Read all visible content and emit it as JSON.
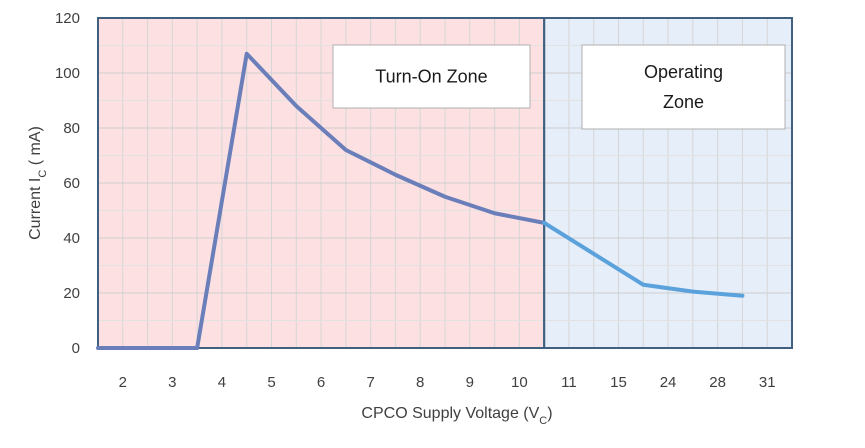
{
  "chart_data": {
    "type": "line",
    "title": "",
    "xlabel": "CPCO Supply Voltage (V",
    "xlabel_sub": "C",
    "xlabel_end": ")",
    "ylabel": "Current I",
    "ylabel_sub": "C",
    "ylabel_end": " ( mA)",
    "ylim": [
      0,
      120
    ],
    "yticks": [
      0,
      20,
      40,
      60,
      80,
      100,
      120
    ],
    "categories": [
      "2",
      "3",
      "4",
      "5",
      "6",
      "7",
      "8",
      "9",
      "10",
      "11",
      "15",
      "24",
      "28",
      "31"
    ],
    "grid": true,
    "zones": [
      {
        "name": "Turn-On Zone",
        "lines": [
          "Turn-On Zone"
        ],
        "from_index": 0,
        "to_index": 9,
        "fill": "#fde0e2",
        "border": "#41607f"
      },
      {
        "name": "Operating Zone",
        "lines": [
          "Operating",
          "Zone"
        ],
        "from_index": 9,
        "to_index": 14,
        "fill": "#e6eef9",
        "border": "#41607f"
      }
    ],
    "series": [
      {
        "name": "Current",
        "segments": [
          {
            "color": "#6a7fba",
            "points": [
              [
                0,
                0
              ],
              [
                2,
                0
              ],
              [
                3,
                107
              ],
              [
                4,
                88
              ],
              [
                5,
                72
              ],
              [
                6,
                63
              ],
              [
                7,
                55
              ],
              [
                8,
                49
              ],
              [
                9,
                45.5
              ]
            ]
          },
          {
            "color": "#5ba1db",
            "points": [
              [
                9,
                45.5
              ],
              [
                11,
                23
              ],
              [
                12,
                20.5
              ],
              [
                13,
                19
              ]
            ]
          }
        ]
      }
    ]
  }
}
